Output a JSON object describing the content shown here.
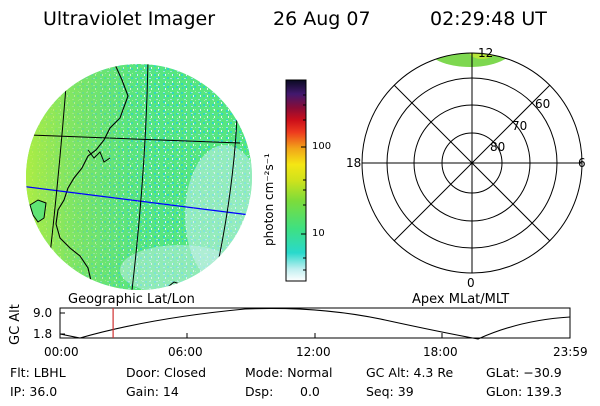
{
  "header": {
    "title": "Ultraviolet Imager",
    "date": "26 Aug 07",
    "time": "02:29:48 UT"
  },
  "colorbar": {
    "label": "photon cm⁻²s⁻¹",
    "ticks": [
      "100",
      "10"
    ]
  },
  "polar": {
    "ring_labels": [
      "60",
      "70",
      "80"
    ],
    "mlt_labels": [
      "12",
      "18",
      "6",
      "0"
    ]
  },
  "panel_labels": {
    "left": "Geographic Lat/Lon",
    "right": "Apex MLat/MLT"
  },
  "altitude_plot": {
    "ylabel": "GC Alt",
    "yticks": [
      "9.0",
      "1.8"
    ],
    "xticks": [
      "00:00",
      "06:00",
      "12:00",
      "18:00",
      "23:59"
    ],
    "current_time_hours": 2.497
  },
  "status": {
    "filter": "Flt: LBHL",
    "door": "Door: Closed",
    "mode": "Mode: Normal",
    "gc_alt": "GC Alt: 4.3 Re",
    "glat": "GLat: −30.9",
    "ip": "IP: 36.0",
    "gain": "Gain: 14",
    "dsp_label": "Dsp:",
    "dsp_value": "0.0",
    "seq": "Seq: 39",
    "glon": "GLon: 139.3"
  },
  "colors": {
    "image_main": "#4fe87a",
    "image_speckle": "#32d8c8",
    "image_edge": "#a8e84a",
    "cursor": "#d03030",
    "lat_line": "#0000ff",
    "polar_top": "#7ed850"
  }
}
